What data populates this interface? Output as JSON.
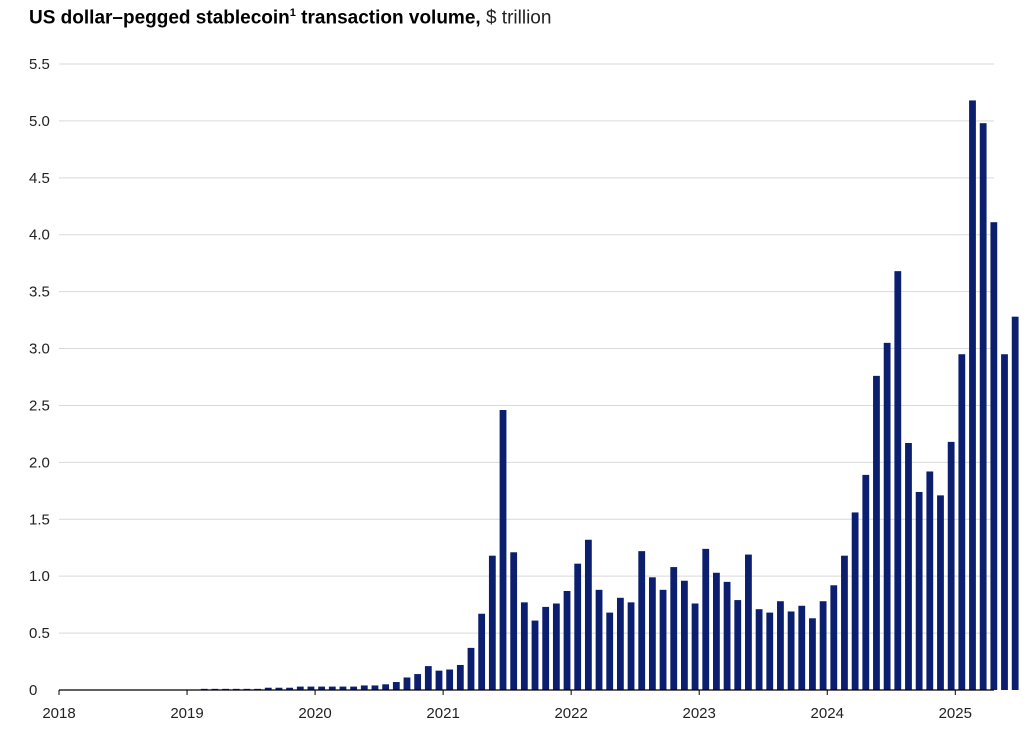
{
  "header": {
    "title_main": "US dollar–pegged stablecoin",
    "title_sup": "1",
    "title_rest": " transaction volume,",
    "title_unit": " $ trillion"
  },
  "colors": {
    "bar": "#0b1f6e",
    "grid": "#d9d9d9",
    "axis": "#000000"
  },
  "chart_data": {
    "type": "bar",
    "title": "US dollar–pegged stablecoin¹ transaction volume, $ trillion",
    "xlabel": "",
    "ylabel": "",
    "ylim": [
      0,
      5.5
    ],
    "yticks": [
      "0",
      "0.5",
      "1.0",
      "1.5",
      "2.0",
      "2.5",
      "3.0",
      "3.5",
      "4.0",
      "4.5",
      "5.0",
      "5.5"
    ],
    "xticks": [
      "2018",
      "2019",
      "2020",
      "2021",
      "2022",
      "2023",
      "2024",
      "2025"
    ],
    "grid": true,
    "legend": "none",
    "frequency": "monthly",
    "start": "2018-01",
    "values": [
      0.0,
      0.0,
      0.0,
      0.0,
      0.0,
      0.0,
      0.0,
      0.0,
      0.0,
      0.0,
      0.0,
      0.0,
      0.0,
      0.01,
      0.01,
      0.01,
      0.01,
      0.01,
      0.01,
      0.02,
      0.02,
      0.02,
      0.03,
      0.03,
      0.03,
      0.03,
      0.03,
      0.03,
      0.04,
      0.04,
      0.05,
      0.07,
      0.11,
      0.14,
      0.21,
      0.17,
      0.18,
      0.22,
      0.37,
      0.67,
      1.18,
      2.46,
      1.21,
      0.77,
      0.61,
      0.73,
      0.76,
      0.87,
      1.11,
      1.32,
      0.88,
      0.68,
      0.81,
      0.77,
      1.22,
      0.99,
      0.88,
      1.08,
      0.96,
      0.76,
      1.24,
      1.03,
      0.95,
      0.79,
      1.19,
      0.71,
      0.68,
      0.78,
      0.69,
      0.74,
      0.63,
      0.78,
      0.92,
      1.18,
      1.56,
      1.89,
      2.76,
      3.05,
      3.68,
      2.17,
      1.74,
      1.92,
      1.71,
      2.18,
      2.95,
      5.18,
      4.98,
      4.11,
      2.95,
      3.28
    ]
  }
}
